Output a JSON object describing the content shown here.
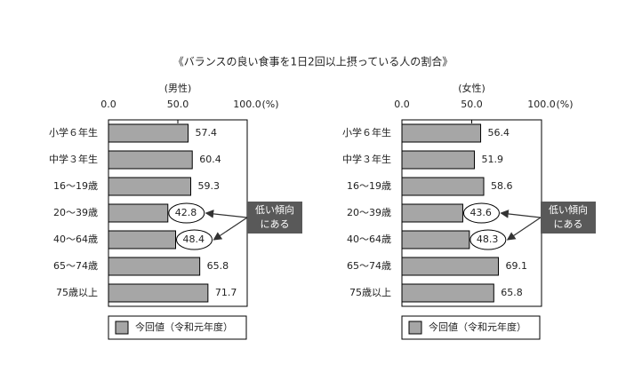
{
  "title": "《バランスの良い食事を1日2回以上摂っている人の割合》",
  "chart_data": [
    {
      "type": "hbar",
      "subtitle": "(男性)",
      "unit_label": "(%)",
      "categories": [
        "小学６年生",
        "中学３年生",
        "16～19歳",
        "20～39歳",
        "40～64歳",
        "65～74歳",
        "75歳以上"
      ],
      "series": [
        {
          "name": "今回値（令和元年度）",
          "color": "#a6a6a6",
          "values": [
            57.4,
            60.4,
            59.3,
            42.8,
            48.4,
            65.8,
            71.7
          ]
        }
      ],
      "xlim": [
        0,
        100
      ],
      "xticks": [
        {
          "value": 0,
          "label": "0.0"
        },
        {
          "value": 50,
          "label": "50.0"
        },
        {
          "value": 100,
          "label": "100.0"
        }
      ],
      "highlight": [
        3,
        4
      ],
      "annotation": [
        "低い傾向",
        "にある"
      ]
    },
    {
      "type": "hbar",
      "subtitle": "(女性)",
      "unit_label": "(%)",
      "categories": [
        "小学６年生",
        "中学３年生",
        "16～19歳",
        "20～39歳",
        "40～64歳",
        "65～74歳",
        "75歳以上"
      ],
      "series": [
        {
          "name": "今回値（令和元年度）",
          "color": "#a6a6a6",
          "values": [
            56.4,
            51.9,
            58.6,
            43.6,
            48.3,
            69.1,
            65.8
          ]
        }
      ],
      "xlim": [
        0,
        100
      ],
      "xticks": [
        {
          "value": 0,
          "label": "0.0"
        },
        {
          "value": 50,
          "label": "50.0"
        },
        {
          "value": 100,
          "label": "100.0"
        }
      ],
      "highlight": [
        3,
        4
      ],
      "annotation": [
        "低い傾向",
        "にある"
      ]
    }
  ]
}
